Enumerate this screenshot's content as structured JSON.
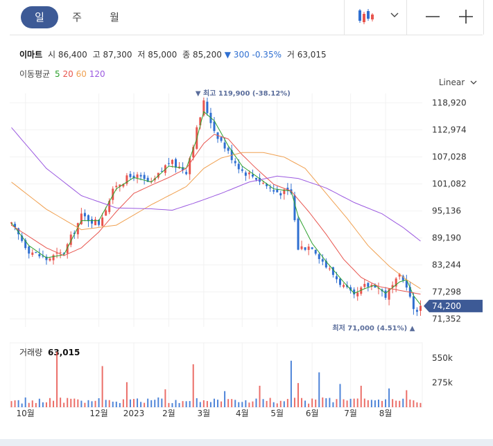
{
  "tabs": [
    {
      "label": "일"
    },
    {
      "label": "주"
    },
    {
      "label": "월"
    }
  ],
  "toolbar": {
    "chart_type_icon": "candlestick-icon",
    "dropdown_icon": "chevron-down-icon",
    "zoom_out_icon": "minus-icon",
    "zoom_in_icon": "plus-icon"
  },
  "summary": {
    "name": "이마트",
    "open_label": "시",
    "open": "86,400",
    "high_label": "고",
    "high": "87,300",
    "low_label": "저",
    "low": "85,000",
    "close_label": "종",
    "close": "85,200",
    "change": "▼ 300 -0.35%",
    "volume_label": "거",
    "volume": "63,015"
  },
  "ma_legend": {
    "label": "이동평균",
    "periods": [
      "5",
      "20",
      "60",
      "120"
    ],
    "colors": [
      "#2ca02c",
      "#e8554e",
      "#f0a050",
      "#9b59e0"
    ]
  },
  "scale_label": "Linear",
  "colors": {
    "up": "#e8554e",
    "down": "#2f6fd1",
    "accent": "#3d5a96"
  },
  "chart_data": {
    "type": "candlestick",
    "price_ticks": [
      "118,920",
      "112,974",
      "107,028",
      "101,082",
      "95,136",
      "89,190",
      "83,244",
      "77,298",
      "71,352"
    ],
    "price_tick_values": [
      118920,
      112974,
      107028,
      101082,
      95136,
      89190,
      83244,
      77298,
      71352
    ],
    "ylim": [
      69600,
      121000
    ],
    "current_price": "74,200",
    "current_value": 74200,
    "max_label": "▼ 최고 119,900 (-38.12%)",
    "max_value": 119900,
    "min_label": "최저 71,000 (4.51%) ▲",
    "min_value": 71000,
    "x_ticks": [
      "10월",
      "12월",
      "2023",
      "2월",
      "3월",
      "4월",
      "5월",
      "6월",
      "7월",
      "8월"
    ],
    "x_tick_index": [
      4,
      25,
      35,
      45,
      55,
      66,
      76,
      86,
      97,
      107
    ],
    "n_bars": 118,
    "close_anchors": [
      [
        0,
        92000
      ],
      [
        5,
        86500
      ],
      [
        10,
        84500
      ],
      [
        15,
        86000
      ],
      [
        20,
        94000
      ],
      [
        25,
        92500
      ],
      [
        30,
        101000
      ],
      [
        35,
        103000
      ],
      [
        40,
        101000
      ],
      [
        45,
        106000
      ],
      [
        50,
        104000
      ],
      [
        53,
        113000
      ],
      [
        55,
        119000
      ],
      [
        58,
        113000
      ],
      [
        62,
        108000
      ],
      [
        66,
        104000
      ],
      [
        70,
        102500
      ],
      [
        75,
        99500
      ],
      [
        80,
        99000
      ],
      [
        82,
        87000
      ],
      [
        86,
        87500
      ],
      [
        90,
        83000
      ],
      [
        95,
        78500
      ],
      [
        98,
        76000
      ],
      [
        101,
        78500
      ],
      [
        104,
        79000
      ],
      [
        107,
        76500
      ],
      [
        111,
        80500
      ],
      [
        113,
        79000
      ],
      [
        115,
        73000
      ],
      [
        117,
        74200
      ]
    ],
    "ma_anchors": {
      "5": [
        [
          0,
          92500
        ],
        [
          5,
          87500
        ],
        [
          10,
          84800
        ],
        [
          15,
          85500
        ],
        [
          20,
          93000
        ],
        [
          25,
          93000
        ],
        [
          30,
          100000
        ],
        [
          35,
          102500
        ],
        [
          40,
          101500
        ],
        [
          45,
          105000
        ],
        [
          50,
          104500
        ],
        [
          53,
          111000
        ],
        [
          55,
          117000
        ],
        [
          58,
          115000
        ],
        [
          62,
          109500
        ],
        [
          66,
          105000
        ],
        [
          70,
          102800
        ],
        [
          75,
          100000
        ],
        [
          80,
          99500
        ],
        [
          82,
          94000
        ],
        [
          86,
          88000
        ],
        [
          90,
          84000
        ],
        [
          95,
          79500
        ],
        [
          98,
          77000
        ],
        [
          101,
          78000
        ],
        [
          104,
          78800
        ],
        [
          107,
          77000
        ],
        [
          111,
          79500
        ],
        [
          113,
          80000
        ],
        [
          115,
          76500
        ],
        [
          117,
          74500
        ]
      ],
      "20": [
        [
          0,
          92000
        ],
        [
          5,
          89500
        ],
        [
          10,
          87000
        ],
        [
          15,
          85300
        ],
        [
          20,
          87000
        ],
        [
          25,
          90500
        ],
        [
          30,
          95000
        ],
        [
          35,
          99000
        ],
        [
          40,
          100800
        ],
        [
          45,
          102500
        ],
        [
          50,
          104500
        ],
        [
          55,
          110000
        ],
        [
          58,
          112000
        ],
        [
          62,
          111000
        ],
        [
          66,
          107500
        ],
        [
          70,
          104500
        ],
        [
          75,
          101000
        ],
        [
          80,
          99500
        ],
        [
          85,
          95000
        ],
        [
          90,
          90000
        ],
        [
          95,
          84500
        ],
        [
          100,
          80500
        ],
        [
          105,
          78500
        ],
        [
          110,
          77800
        ],
        [
          117,
          76800
        ]
      ],
      "60": [
        [
          0,
          101500
        ],
        [
          10,
          95500
        ],
        [
          20,
          91000
        ],
        [
          30,
          92000
        ],
        [
          40,
          96500
        ],
        [
          50,
          100500
        ],
        [
          55,
          104500
        ],
        [
          60,
          106800
        ],
        [
          66,
          108000
        ],
        [
          72,
          108000
        ],
        [
          78,
          107000
        ],
        [
          84,
          104500
        ],
        [
          90,
          99000
        ],
        [
          96,
          93500
        ],
        [
          102,
          87500
        ],
        [
          108,
          83000
        ],
        [
          113,
          80000
        ],
        [
          117,
          78000
        ]
      ],
      "120": [
        [
          0,
          113500
        ],
        [
          10,
          104500
        ],
        [
          20,
          98500
        ],
        [
          30,
          95800
        ],
        [
          40,
          95600
        ],
        [
          46,
          95300
        ],
        [
          52,
          96800
        ],
        [
          60,
          99000
        ],
        [
          68,
          101500
        ],
        [
          76,
          102800
        ],
        [
          82,
          102300
        ],
        [
          90,
          100200
        ],
        [
          98,
          97000
        ],
        [
          106,
          94500
        ],
        [
          112,
          91500
        ],
        [
          117,
          88500
        ]
      ]
    },
    "volume_label": "거래량",
    "volume_value": "63,015",
    "volume_ticks": [
      "550k",
      "275k"
    ],
    "volume_tick_values": [
      550000,
      275000
    ],
    "volume_max": 720000,
    "volume_spikes": [
      [
        13,
        620000
      ],
      [
        26,
        460000
      ],
      [
        33,
        280000
      ],
      [
        44,
        200000
      ],
      [
        52,
        480000
      ],
      [
        61,
        180000
      ],
      [
        71,
        240000
      ],
      [
        80,
        520000
      ],
      [
        82,
        270000
      ],
      [
        88,
        390000
      ],
      [
        94,
        260000
      ],
      [
        100,
        240000
      ],
      [
        108,
        210000
      ],
      [
        113,
        190000
      ]
    ]
  }
}
